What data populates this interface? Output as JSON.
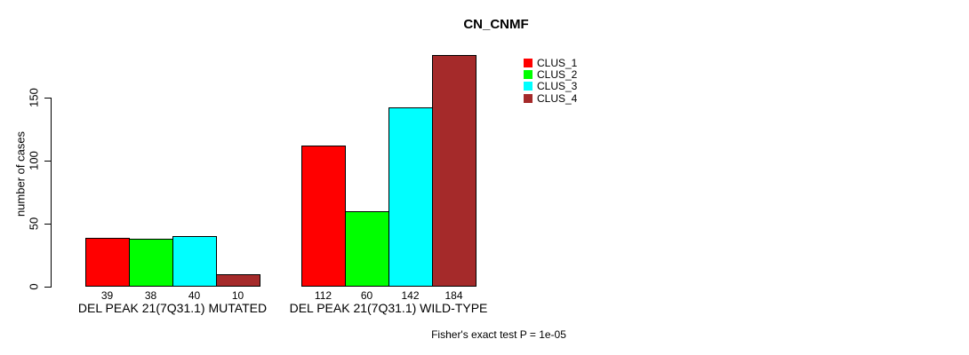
{
  "chart_data": {
    "type": "bar",
    "title": "CN_CNMF",
    "ylabel": "number of cases",
    "xlabel": "",
    "ylim": [
      0,
      184
    ],
    "yticks": [
      0,
      50,
      100,
      150
    ],
    "grid": false,
    "legend_position": "top-right",
    "show_bar_value_labels": true,
    "categories": [
      "DEL PEAK 21(7Q31.1) MUTATED",
      "DEL PEAK 21(7Q31.1) WILD-TYPE"
    ],
    "series": [
      {
        "name": "CLUS_1",
        "color": "#FF0000",
        "values": [
          39,
          112
        ]
      },
      {
        "name": "CLUS_2",
        "color": "#00FF00",
        "values": [
          38,
          60
        ]
      },
      {
        "name": "CLUS_3",
        "color": "#00FFFF",
        "values": [
          40,
          142
        ]
      },
      {
        "name": "CLUS_4",
        "color": "#A52A2A",
        "values": [
          10,
          184
        ]
      }
    ],
    "annotation": "Fisher's exact test P = 1e-05"
  }
}
